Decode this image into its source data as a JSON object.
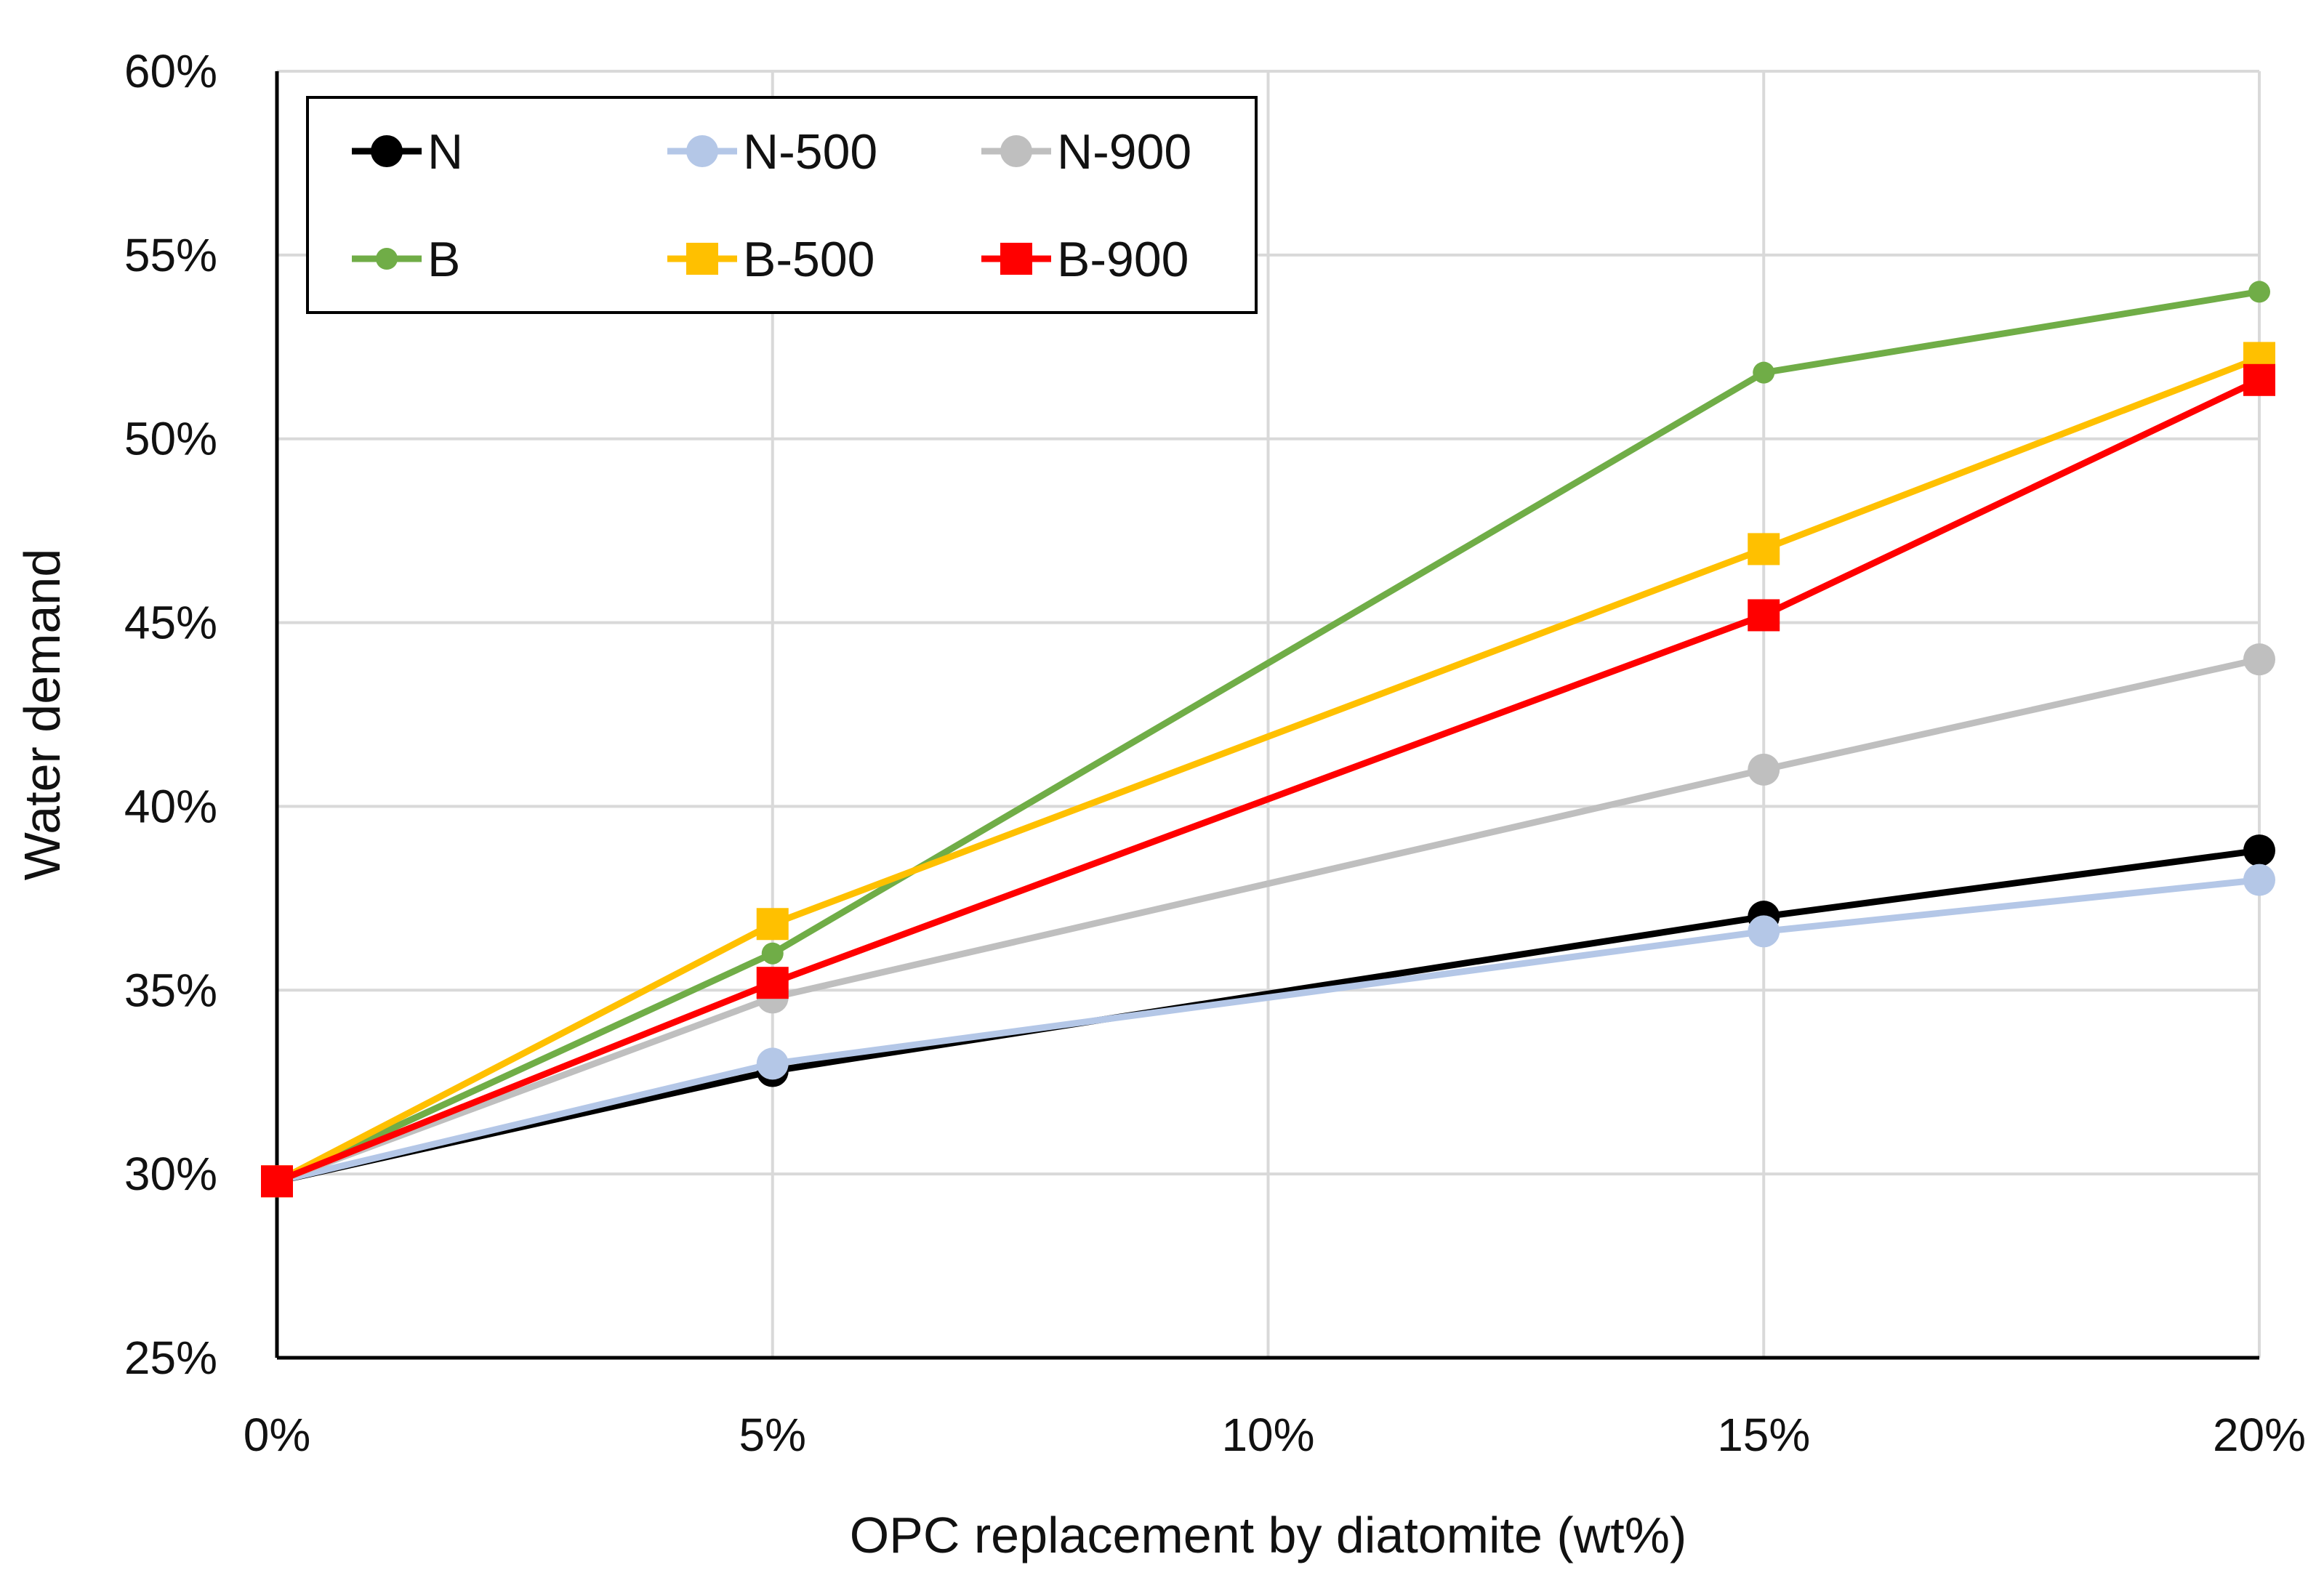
{
  "chart_data": {
    "type": "line",
    "title": "",
    "xlabel": "OPC replacement by diatomite (wt%)",
    "ylabel": "Water demand",
    "x": [
      0,
      5,
      15,
      20
    ],
    "xlim": [
      0,
      20
    ],
    "ylim": [
      25,
      60
    ],
    "x_ticks": [
      0,
      5,
      10,
      15,
      20
    ],
    "y_ticks": [
      25,
      30,
      35,
      40,
      45,
      50,
      55,
      60
    ],
    "x_tick_labels": [
      "0%",
      "5%",
      "10%",
      "15%",
      "20%"
    ],
    "y_tick_labels": [
      "25%",
      "30%",
      "35%",
      "40%",
      "45%",
      "50%",
      "55%",
      "60%"
    ],
    "grid": true,
    "legend_position": "top-left",
    "series": [
      {
        "name": "N",
        "values": [
          29.8,
          32.8,
          37.0,
          38.8
        ],
        "color": "#000000",
        "marker": "circle",
        "marker_size": "large"
      },
      {
        "name": "N-500",
        "values": [
          29.8,
          33.0,
          36.6,
          38.0
        ],
        "color": "#b4c7e7",
        "marker": "circle",
        "marker_size": "large"
      },
      {
        "name": "N-900",
        "values": [
          29.8,
          34.8,
          41.0,
          44.0
        ],
        "color": "#bfbfbf",
        "marker": "circle",
        "marker_size": "large"
      },
      {
        "name": "B",
        "values": [
          29.8,
          36.0,
          51.8,
          54.0
        ],
        "color": "#70ad47",
        "marker": "circle",
        "marker_size": "small"
      },
      {
        "name": "B-500",
        "values": [
          29.8,
          36.8,
          47.0,
          52.2
        ],
        "color": "#ffc000",
        "marker": "square",
        "marker_size": "large"
      },
      {
        "name": "B-900",
        "values": [
          29.8,
          35.2,
          45.2,
          51.6
        ],
        "color": "#ff0000",
        "marker": "square",
        "marker_size": "large"
      }
    ],
    "legend_rows": [
      [
        "N",
        "N-500",
        "N-900"
      ],
      [
        "B",
        "B-500",
        "B-900"
      ]
    ]
  }
}
